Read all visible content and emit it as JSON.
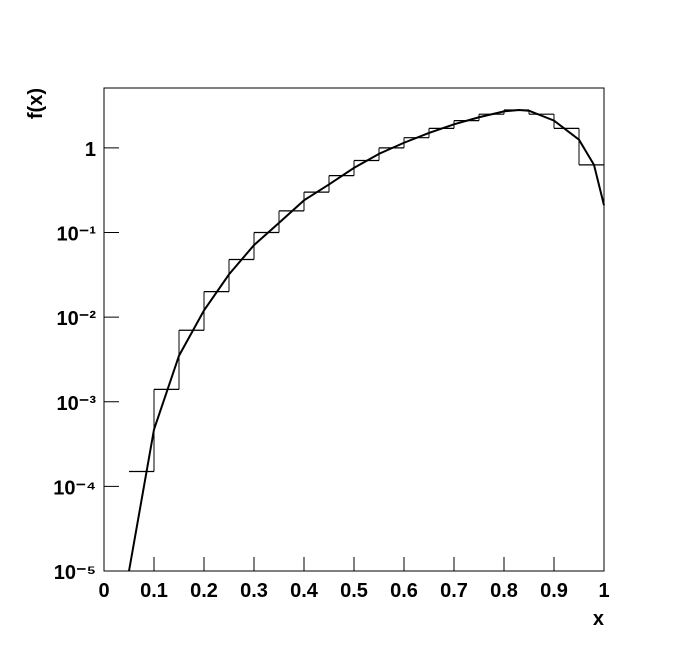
{
  "chart_data": {
    "type": "histogram",
    "xlabel": "x",
    "ylabel": "f(x)",
    "color": "#000000",
    "bins": [
      0.05,
      0.1,
      0.15,
      0.2,
      0.25,
      0.3,
      0.35,
      0.4,
      0.45,
      0.5,
      0.55,
      0.6,
      0.65,
      0.7,
      0.75,
      0.8,
      0.85,
      0.9,
      0.95,
      1.0
    ],
    "values": [
      0.00015,
      0.0014,
      0.007,
      0.02,
      0.048,
      0.1,
      0.18,
      0.3,
      0.47,
      0.71,
      1.0,
      1.32,
      1.7,
      2.1,
      2.5,
      2.8,
      2.5,
      1.7,
      0.63
    ],
    "line": {
      "type": "line",
      "color": "#000000",
      "x": [
        0.05,
        0.1,
        0.15,
        0.2,
        0.25,
        0.3,
        0.35,
        0.4,
        0.45,
        0.5,
        0.55,
        0.6,
        0.65,
        0.7,
        0.75,
        0.8,
        0.83,
        0.85,
        0.9,
        0.95,
        0.98,
        1.0
      ],
      "values": [
        1e-05,
        0.00047,
        0.0035,
        0.012,
        0.032,
        0.071,
        0.13,
        0.24,
        0.37,
        0.58,
        0.85,
        1.15,
        1.5,
        1.9,
        2.3,
        2.7,
        2.8,
        2.75,
        2.1,
        1.25,
        0.63,
        0.21
      ]
    },
    "xlim": [
      0,
      1
    ],
    "ylim": [
      1e-05,
      5.1
    ],
    "log_y": true,
    "xticks": [
      0,
      0.1,
      0.2,
      0.3,
      0.4,
      0.5,
      0.6,
      0.7,
      0.8,
      0.9,
      1
    ],
    "yticks": [
      {
        "value": 1e-05,
        "label": "10⁻⁵"
      },
      {
        "value": 0.0001,
        "label": "10⁻⁴"
      },
      {
        "value": 0.001,
        "label": "10⁻³"
      },
      {
        "value": 0.01,
        "label": "10⁻²"
      },
      {
        "value": 0.1,
        "label": "10⁻¹"
      },
      1
    ]
  }
}
